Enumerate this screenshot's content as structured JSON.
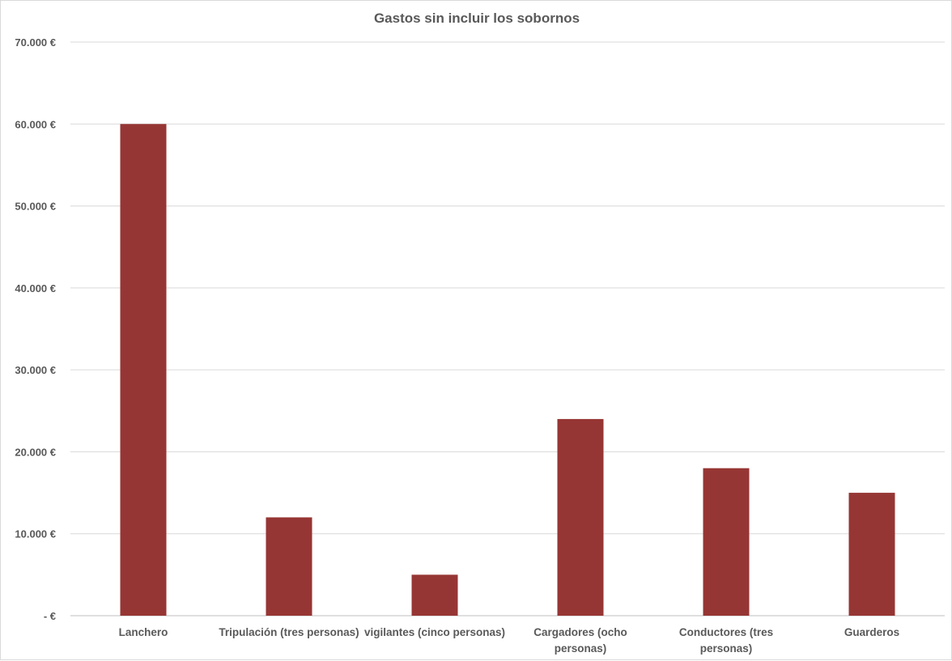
{
  "chart_data": {
    "type": "bar",
    "title": "Gastos sin incluir los sobornos",
    "xlabel": "",
    "ylabel": "",
    "categories": [
      [
        "Lanchero"
      ],
      [
        "Tripulación (tres personas)"
      ],
      [
        "vigilantes (cinco personas)"
      ],
      [
        "Cargadores (ocho",
        "personas)"
      ],
      [
        "Conductores (tres",
        "personas)"
      ],
      [
        "Guarderos"
      ]
    ],
    "values": [
      60000,
      12000,
      5000,
      24000,
      18000,
      15000
    ],
    "ylim": [
      0,
      70000
    ],
    "yticks": [
      0,
      10000,
      20000,
      30000,
      40000,
      50000,
      60000,
      70000
    ],
    "ytick_labels": [
      "-  €",
      "10.000 €",
      "20.000 €",
      "30.000 €",
      "40.000 €",
      "50.000 €",
      "60.000 €",
      "70.000 €"
    ],
    "grid": true,
    "legend": "none",
    "bar_color": "#963634",
    "grid_color": "#d9d9d9"
  }
}
